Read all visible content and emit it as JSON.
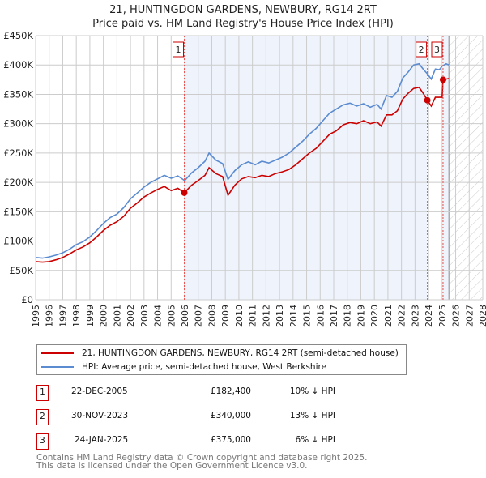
{
  "title": "21, HUNTINGDON GARDENS, NEWBURY, RG14 2RT",
  "subtitle": "Price paid vs. HM Land Registry's House Price Index (HPI)",
  "colors": {
    "property": "#cc0000",
    "hpi": "#5b8bd0",
    "shade": "#eef3fc"
  },
  "chart_data": {
    "type": "line",
    "xlim": [
      1995,
      2028
    ],
    "ylim": [
      0,
      450000
    ],
    "y_ticks": [
      0,
      50000,
      100000,
      150000,
      200000,
      250000,
      300000,
      350000,
      400000,
      450000
    ],
    "y_tick_labels": [
      "£0",
      "£50K",
      "£100K",
      "£150K",
      "£200K",
      "£250K",
      "£300K",
      "£350K",
      "£400K",
      "£450K"
    ],
    "x_ticks": [
      "1995",
      "1996",
      "1997",
      "1998",
      "1999",
      "2000",
      "2001",
      "2002",
      "2003",
      "2004",
      "2005",
      "2006",
      "2007",
      "2008",
      "2009",
      "2010",
      "2011",
      "2012",
      "2013",
      "2014",
      "2015",
      "2016",
      "2017",
      "2018",
      "2019",
      "2020",
      "2021",
      "2022",
      "2023",
      "2024",
      "2025",
      "2026",
      "2027",
      "2028"
    ],
    "grid": true,
    "forecast_hatch_from": 2025.5,
    "series": [
      {
        "name": "21, HUNTINGDON GARDENS, NEWBURY, RG14 2RT (semi-detached house)",
        "x": [
          1995,
          1995.5,
          1996,
          1996.5,
          1997,
          1997.5,
          1998,
          1998.5,
          1999,
          1999.5,
          2000,
          2000.5,
          2001,
          2001.5,
          2002,
          2002.5,
          2003,
          2003.5,
          2004,
          2004.5,
          2005,
          2005.5,
          2005.97,
          2006.5,
          2007,
          2007.5,
          2007.8,
          2008.3,
          2008.8,
          2009.2,
          2009.7,
          2010.2,
          2010.7,
          2011.2,
          2011.7,
          2012.2,
          2012.7,
          2013.2,
          2013.7,
          2014.2,
          2014.7,
          2015.2,
          2015.7,
          2016.2,
          2016.7,
          2017.2,
          2017.7,
          2018.2,
          2018.7,
          2019.2,
          2019.7,
          2020.2,
          2020.5,
          2020.9,
          2021.3,
          2021.7,
          2022.1,
          2022.5,
          2022.9,
          2023.3,
          2023.6,
          2023.91,
          2024.2,
          2024.5,
          2024.8,
          2025.0,
          2025.07,
          2025.3,
          2025.5
        ],
        "values": [
          65000,
          64000,
          65000,
          68000,
          72000,
          78000,
          85000,
          90000,
          97000,
          107000,
          118000,
          127000,
          133000,
          142000,
          156000,
          165000,
          175000,
          182000,
          188000,
          193000,
          186000,
          190000,
          182400,
          195000,
          203000,
          212000,
          225000,
          215000,
          210000,
          178000,
          195000,
          206000,
          210000,
          208000,
          212000,
          210000,
          215000,
          218000,
          222000,
          230000,
          240000,
          250000,
          258000,
          270000,
          282000,
          288000,
          298000,
          302000,
          300000,
          305000,
          300000,
          303000,
          296000,
          315000,
          315000,
          322000,
          342000,
          352000,
          360000,
          362000,
          352000,
          340000,
          330000,
          345000,
          345000,
          345000,
          375000,
          376000,
          377000
        ]
      },
      {
        "name": "HPI: Average price, semi-detached house, West Berkshire",
        "x": [
          1995,
          1995.5,
          1996,
          1996.5,
          1997,
          1997.5,
          1998,
          1998.5,
          1999,
          1999.5,
          2000,
          2000.5,
          2001,
          2001.5,
          2002,
          2002.5,
          2003,
          2003.5,
          2004,
          2004.5,
          2005,
          2005.5,
          2006,
          2006.5,
          2007,
          2007.5,
          2007.8,
          2008.3,
          2008.8,
          2009.2,
          2009.7,
          2010.2,
          2010.7,
          2011.2,
          2011.7,
          2012.2,
          2012.7,
          2013.2,
          2013.7,
          2014.2,
          2014.7,
          2015.2,
          2015.7,
          2016.2,
          2016.7,
          2017.2,
          2017.7,
          2018.2,
          2018.7,
          2019.2,
          2019.7,
          2020.2,
          2020.5,
          2020.9,
          2021.3,
          2021.7,
          2022.1,
          2022.5,
          2022.9,
          2023.3,
          2023.6,
          2023.91,
          2024.2,
          2024.5,
          2024.8,
          2025.0,
          2025.3,
          2025.5
        ],
        "values": [
          72000,
          71000,
          73000,
          76000,
          80000,
          86000,
          94000,
          99000,
          107000,
          118000,
          130000,
          140000,
          146000,
          157000,
          172000,
          182000,
          192000,
          200000,
          206000,
          212000,
          207000,
          211000,
          203000,
          216000,
          225000,
          236000,
          250000,
          238000,
          232000,
          205000,
          220000,
          230000,
          235000,
          230000,
          236000,
          233000,
          238000,
          243000,
          250000,
          260000,
          270000,
          282000,
          292000,
          305000,
          318000,
          325000,
          332000,
          335000,
          330000,
          334000,
          328000,
          333000,
          325000,
          348000,
          345000,
          355000,
          378000,
          388000,
          400000,
          402000,
          393000,
          385000,
          376000,
          393000,
          392000,
          398000,
          402000,
          400000
        ]
      }
    ],
    "annotations": [
      {
        "label": "1",
        "x": 2005.97,
        "value": 182400
      },
      {
        "label": "2",
        "x": 2023.91,
        "value": 340000
      },
      {
        "label": "3",
        "x": 2025.07,
        "value": 375000
      }
    ]
  },
  "legend": {
    "property": "21, HUNTINGDON GARDENS, NEWBURY, RG14 2RT (semi-detached house)",
    "hpi": "HPI: Average price, semi-detached house, West Berkshire"
  },
  "sales": [
    {
      "num": "1",
      "date": "22-DEC-2005",
      "price": "£182,400",
      "hpi": "10% ↓ HPI"
    },
    {
      "num": "2",
      "date": "30-NOV-2023",
      "price": "£340,000",
      "hpi": "13% ↓ HPI"
    },
    {
      "num": "3",
      "date": "24-JAN-2025",
      "price": "£375,000",
      "hpi": "6% ↓ HPI"
    }
  ],
  "footer": {
    "line1": "Contains HM Land Registry data © Crown copyright and database right 2025.",
    "line2": "This data is licensed under the Open Government Licence v3.0."
  }
}
